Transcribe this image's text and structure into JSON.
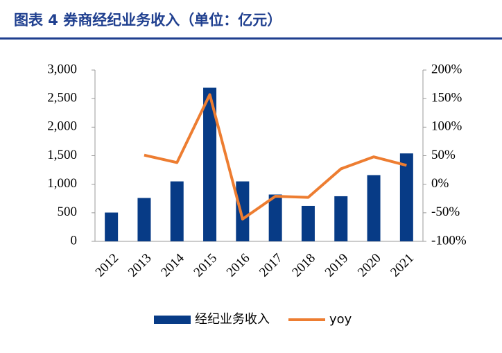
{
  "chart_data": {
    "type": "bar-line",
    "title": "图表 4   券商经纪业务收入（单位：亿元）",
    "categories": [
      "2012",
      "2013",
      "2014",
      "2015",
      "2016",
      "2017",
      "2018",
      "2019",
      "2020",
      "2021"
    ],
    "series": [
      {
        "name": "经纪业务收入",
        "type": "bar",
        "color": "#073b86",
        "values": [
          504,
          760,
          1050,
          2690,
          1050,
          820,
          620,
          790,
          1160,
          1540
        ]
      },
      {
        "name": "yoy",
        "type": "line",
        "axis": "y2",
        "color": "#ed7d31",
        "values": [
          null,
          51,
          38,
          157,
          -61,
          -21,
          -23,
          27,
          48,
          33
        ]
      }
    ],
    "ylim": [
      0,
      3000
    ],
    "yticks": [
      0,
      500,
      {
        "value": 1000,
        "label": "1,000"
      },
      {
        "value": 1500,
        "label": "1,500"
      },
      {
        "value": 2000,
        "label": "2,000"
      },
      {
        "value": 2500,
        "label": "2,500"
      },
      {
        "value": 3000,
        "label": "3,000"
      }
    ],
    "y2lim": [
      -100,
      200
    ],
    "y2ticks": [
      {
        "value": -100,
        "label": "-100%"
      },
      {
        "value": -50,
        "label": "-50%"
      },
      {
        "value": 0,
        "label": "0%"
      },
      {
        "value": 50,
        "label": "50%"
      },
      {
        "value": 100,
        "label": "100%"
      },
      {
        "value": 150,
        "label": "150%"
      },
      {
        "value": 200,
        "label": "200%"
      }
    ],
    "legend": "bottom"
  }
}
